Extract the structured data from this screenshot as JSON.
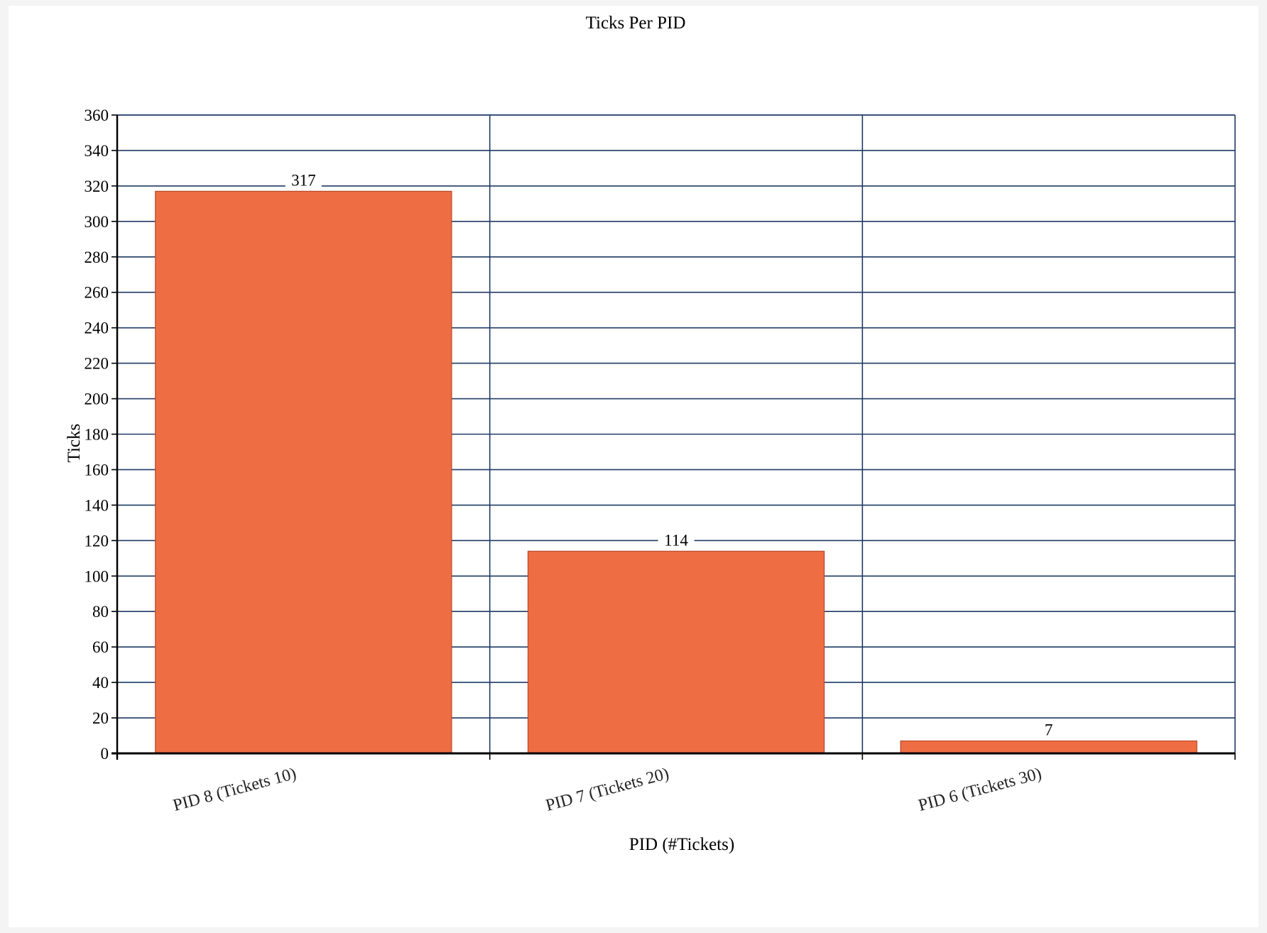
{
  "chart_data": {
    "type": "bar",
    "title": "Ticks Per PID",
    "xlabel": "PID (#Tickets)",
    "ylabel": "Ticks",
    "categories": [
      "PID 8 (Tickets 10)",
      "PID 7 (Tickets 20)",
      "PID 6 (Tickets 30)"
    ],
    "values": [
      317,
      114,
      7
    ],
    "data_labels": [
      "317",
      "114",
      "7"
    ],
    "ylim": [
      0,
      360
    ],
    "ytick_step": 20,
    "grid": true,
    "legend": "none",
    "colors": {
      "bar_fill": "#ef6d43",
      "bar_stroke": "#b8482a",
      "grid": "#1f3a64",
      "axis": "#000000"
    }
  }
}
